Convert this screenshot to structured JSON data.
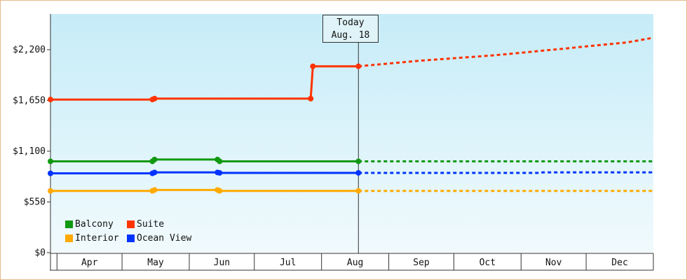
{
  "chart_data": {
    "type": "line",
    "title": "",
    "xlabel": "",
    "ylabel": "",
    "x_ticks": [
      "Apr",
      "May",
      "Jun",
      "Jul",
      "Aug",
      "Sep",
      "Oct",
      "Nov",
      "Dec"
    ],
    "y_ticks": [
      "$0",
      "$550",
      "$1,100",
      "$1,650",
      "$2,200"
    ],
    "ylim": [
      0,
      2200
    ],
    "today_marker": {
      "line1": "Today",
      "line2": "Aug. 18",
      "date": "2024-08-18"
    },
    "grid": false,
    "legend_position": "bottom-left",
    "series": [
      {
        "name": "Suite",
        "color": "#ff3300",
        "actual": [
          [
            "2024-03-29",
            1660
          ],
          [
            "2024-05-15",
            1660
          ],
          [
            "2024-05-16",
            1670
          ],
          [
            "2024-07-27",
            1670
          ],
          [
            "2024-07-28",
            2020
          ],
          [
            "2024-08-18",
            2020
          ]
        ],
        "forecast": [
          [
            "2024-08-18",
            2020
          ],
          [
            "2024-09-15",
            2080
          ],
          [
            "2024-10-20",
            2140
          ],
          [
            "2024-11-20",
            2210
          ],
          [
            "2024-12-20",
            2280
          ],
          [
            "2025-01-01",
            2330
          ]
        ]
      },
      {
        "name": "Balcony",
        "color": "#119911",
        "actual": [
          [
            "2024-03-29",
            990
          ],
          [
            "2024-05-15",
            990
          ],
          [
            "2024-05-16",
            1010
          ],
          [
            "2024-06-14",
            1010
          ],
          [
            "2024-06-15",
            990
          ],
          [
            "2024-08-18",
            990
          ]
        ],
        "forecast": [
          [
            "2024-08-18",
            990
          ],
          [
            "2025-01-01",
            990
          ]
        ]
      },
      {
        "name": "Ocean View",
        "color": "#0033ff",
        "actual": [
          [
            "2024-03-29",
            860
          ],
          [
            "2024-05-15",
            860
          ],
          [
            "2024-05-16",
            870
          ],
          [
            "2024-06-14",
            870
          ],
          [
            "2024-06-15",
            865
          ],
          [
            "2024-08-18",
            865
          ]
        ],
        "forecast": [
          [
            "2024-08-18",
            865
          ],
          [
            "2024-11-10",
            865
          ],
          [
            "2024-11-11",
            870
          ],
          [
            "2025-01-01",
            870
          ]
        ]
      },
      {
        "name": "Interior",
        "color": "#ffaa00",
        "actual": [
          [
            "2024-03-29",
            670
          ],
          [
            "2024-05-15",
            670
          ],
          [
            "2024-05-16",
            680
          ],
          [
            "2024-06-14",
            680
          ],
          [
            "2024-06-15",
            670
          ],
          [
            "2024-08-18",
            670
          ]
        ],
        "forecast": [
          [
            "2024-08-18",
            670
          ],
          [
            "2025-01-01",
            670
          ]
        ]
      }
    ],
    "markers": [
      {
        "series": "Suite",
        "dates": [
          "2024-03-29",
          "2024-05-15",
          "2024-05-16",
          "2024-07-27",
          "2024-07-28",
          "2024-08-18"
        ]
      },
      {
        "series": "Balcony",
        "dates": [
          "2024-03-29",
          "2024-05-15",
          "2024-05-16",
          "2024-06-14",
          "2024-06-15",
          "2024-08-18"
        ]
      },
      {
        "series": "Ocean View",
        "dates": [
          "2024-03-29",
          "2024-05-15",
          "2024-05-16",
          "2024-06-14",
          "2024-06-15",
          "2024-08-18"
        ]
      },
      {
        "series": "Interior",
        "dates": [
          "2024-03-29",
          "2024-05-15",
          "2024-05-16",
          "2024-06-14",
          "2024-06-15",
          "2024-08-18"
        ]
      }
    ]
  },
  "legend": [
    {
      "name": "Balcony",
      "color": "#119911"
    },
    {
      "name": "Suite",
      "color": "#ff3300"
    },
    {
      "name": "Interior",
      "color": "#ffaa00"
    },
    {
      "name": "Ocean View",
      "color": "#0033ff"
    }
  ]
}
